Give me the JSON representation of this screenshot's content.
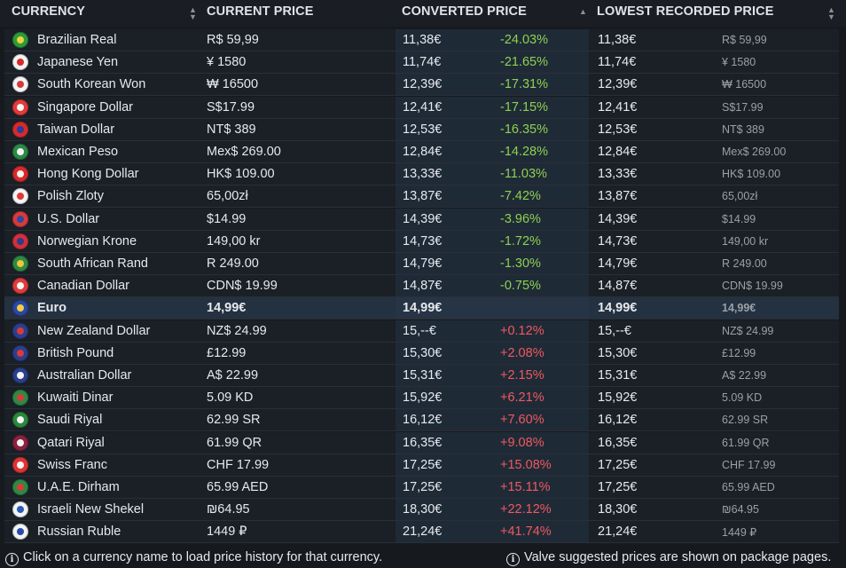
{
  "header": {
    "currency": "CURRENCY",
    "current_price": "CURRENT PRICE",
    "converted_price": "CONVERTED PRICE",
    "lowest_recorded_price": "LOWEST RECORDED PRICE"
  },
  "rows": [
    {
      "name": "Brazilian Real",
      "price": "R$ 59,99",
      "conv": "11,38€",
      "pct": "-24.03%",
      "low": "11,38€",
      "lowp": "R$ 59,99",
      "flag": [
        "#2c9b3c",
        "#f2d23c"
      ]
    },
    {
      "name": "Japanese Yen",
      "price": "¥ 1580",
      "conv": "11,74€",
      "pct": "-21.65%",
      "low": "11,74€",
      "lowp": "¥ 1580",
      "flag": [
        "#f4f4f4",
        "#d82a2a"
      ]
    },
    {
      "name": "South Korean Won",
      "price": "₩ 16500",
      "conv": "12,39€",
      "pct": "-17.31%",
      "low": "12,39€",
      "lowp": "₩ 16500",
      "flag": [
        "#f4f4f4",
        "#d23b3b"
      ]
    },
    {
      "name": "Singapore Dollar",
      "price": "S$17.99",
      "conv": "12,41€",
      "pct": "-17.15%",
      "low": "12,41€",
      "lowp": "S$17.99",
      "flag": [
        "#e53a3a",
        "#f4f4f4"
      ]
    },
    {
      "name": "Taiwan Dollar",
      "price": "NT$ 389",
      "conv": "12,53€",
      "pct": "-16.35%",
      "low": "12,53€",
      "lowp": "NT$ 389",
      "flag": [
        "#d72b2b",
        "#2a3c9c"
      ]
    },
    {
      "name": "Mexican Peso",
      "price": "Mex$ 269.00",
      "conv": "12,84€",
      "pct": "-14.28%",
      "low": "12,84€",
      "lowp": "Mex$ 269.00",
      "flag": [
        "#2c8a45",
        "#f4f4f4"
      ]
    },
    {
      "name": "Hong Kong Dollar",
      "price": "HK$ 109.00",
      "conv": "13,33€",
      "pct": "-11.03%",
      "low": "13,33€",
      "lowp": "HK$ 109.00",
      "flag": [
        "#d82a2a",
        "#f4f4f4"
      ]
    },
    {
      "name": "Polish Zloty",
      "price": "65,00zł",
      "conv": "13,87€",
      "pct": "-7.42%",
      "low": "13,87€",
      "lowp": "65,00zł",
      "flag": [
        "#f4f4f4",
        "#dc3a3a"
      ]
    },
    {
      "name": "U.S. Dollar",
      "price": "$14.99",
      "conv": "14,39€",
      "pct": "-3.96%",
      "low": "14,39€",
      "lowp": "$14.99",
      "flag": [
        "#d93a3a",
        "#2e4aa0"
      ]
    },
    {
      "name": "Norwegian Krone",
      "price": "149,00 kr",
      "conv": "14,73€",
      "pct": "-1.72%",
      "low": "14,73€",
      "lowp": "149,00 kr",
      "flag": [
        "#d4303a",
        "#2a3e8c"
      ]
    },
    {
      "name": "South African Rand",
      "price": "R 249.00",
      "conv": "14,79€",
      "pct": "-1.30%",
      "low": "14,79€",
      "lowp": "R 249.00",
      "flag": [
        "#2d8a45",
        "#f2c53c"
      ]
    },
    {
      "name": "Canadian Dollar",
      "price": "CDN$ 19.99",
      "conv": "14,87€",
      "pct": "-0.75%",
      "low": "14,87€",
      "lowp": "CDN$ 19.99",
      "flag": [
        "#e23b3b",
        "#f4f4f4"
      ]
    },
    {
      "name": "Euro",
      "price": "14,99€",
      "conv": "14,99€",
      "pct": "",
      "low": "14,99€",
      "lowp": "14,99€",
      "flag": [
        "#2b47a8",
        "#f2cf3c"
      ],
      "base": true
    },
    {
      "name": "New Zealand Dollar",
      "price": "NZ$ 24.99",
      "conv": "15,--€",
      "pct": "+0.12%",
      "low": "15,--€",
      "lowp": "NZ$ 24.99",
      "flag": [
        "#2a3f8e",
        "#d93a3a"
      ]
    },
    {
      "name": "British Pound",
      "price": "£12.99",
      "conv": "15,30€",
      "pct": "+2.08%",
      "low": "15,30€",
      "lowp": "£12.99",
      "flag": [
        "#2a3f8e",
        "#d93a3a"
      ]
    },
    {
      "name": "Australian Dollar",
      "price": "A$ 22.99",
      "conv": "15,31€",
      "pct": "+2.15%",
      "low": "15,31€",
      "lowp": "A$ 22.99",
      "flag": [
        "#2a3f8e",
        "#f4f4f4"
      ]
    },
    {
      "name": "Kuwaiti Dinar",
      "price": "5.09 KD",
      "conv": "15,92€",
      "pct": "+6.21%",
      "low": "15,92€",
      "lowp": "5.09 KD",
      "flag": [
        "#2d8a45",
        "#d93a3a"
      ]
    },
    {
      "name": "Saudi Riyal",
      "price": "62.99 SR",
      "conv": "16,12€",
      "pct": "+7.60%",
      "low": "16,12€",
      "lowp": "62.99 SR",
      "flag": [
        "#2a8a3c",
        "#f4f4f4"
      ]
    },
    {
      "name": "Qatari Riyal",
      "price": "61.99 QR",
      "conv": "16,35€",
      "pct": "+9.08%",
      "low": "16,35€",
      "lowp": "61.99 QR",
      "flag": [
        "#8c2140",
        "#f4f4f4"
      ]
    },
    {
      "name": "Swiss Franc",
      "price": "CHF 17.99",
      "conv": "17,25€",
      "pct": "+15.08%",
      "low": "17,25€",
      "lowp": "CHF 17.99",
      "flag": [
        "#e03434",
        "#f4f4f4"
      ]
    },
    {
      "name": "U.A.E. Dirham",
      "price": "65.99 AED",
      "conv": "17,25€",
      "pct": "+15.11%",
      "low": "17,25€",
      "lowp": "65.99 AED",
      "flag": [
        "#2d8a45",
        "#d93a3a"
      ]
    },
    {
      "name": "Israeli New Shekel",
      "price": "₪64.95",
      "conv": "18,30€",
      "pct": "+22.12%",
      "low": "18,30€",
      "lowp": "₪64.95",
      "flag": [
        "#f4f4f4",
        "#2c5bb8"
      ]
    },
    {
      "name": "Russian Ruble",
      "price": "1449 ₽",
      "conv": "21,24€",
      "pct": "+41.74%",
      "low": "21,24€",
      "lowp": "1449 ₽",
      "flag": [
        "#f4f4f4",
        "#2a4aa8"
      ]
    }
  ],
  "footer": {
    "left": "Click on a currency name to load price history for that currency.",
    "right": "Valve suggested prices are shown on package pages.",
    "info_icon": "info-icon"
  }
}
